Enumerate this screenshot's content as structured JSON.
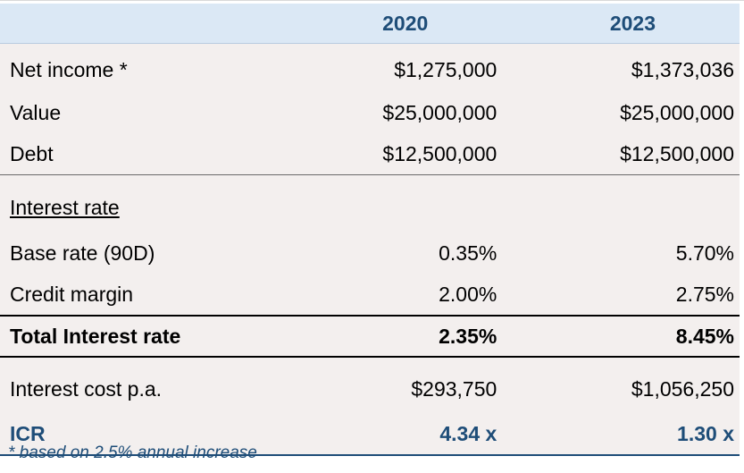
{
  "table": {
    "columns": [
      "2020",
      "2023"
    ],
    "rows": [
      {
        "label": "Net income *",
        "v2020": "$1,275,000",
        "v2023": "$1,373,036"
      },
      {
        "label": "Value",
        "v2020": "$25,000,000",
        "v2023": "$25,000,000"
      },
      {
        "label": "Debt",
        "v2020": "$12,500,000",
        "v2023": "$12,500,000"
      },
      {
        "label": "Interest rate",
        "v2020": "",
        "v2023": ""
      },
      {
        "label": "Base rate (90D)",
        "v2020": "0.35%",
        "v2023": "5.70%"
      },
      {
        "label": "Credit margin",
        "v2020": "2.00%",
        "v2023": "2.75%"
      },
      {
        "label": "Total Interest rate",
        "v2020": "2.35%",
        "v2023": "8.45%"
      },
      {
        "label": "Interest cost p.a.",
        "v2020": "$293,750",
        "v2023": "$1,056,250"
      },
      {
        "label": "ICR",
        "v2020": "4.34 x",
        "v2023": "1.30 x"
      }
    ]
  },
  "footnote": "* based on 2.5% annual increase",
  "colors": {
    "header_bg": "#dbe8f5",
    "header_text": "#1e4d78",
    "body_bg": "#f3efee",
    "icr_text": "#1e4d78"
  }
}
